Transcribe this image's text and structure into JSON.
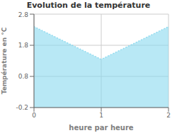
{
  "chart_data": {
    "type": "area",
    "title": "Evolution de la température",
    "xlabel": "heure par heure",
    "ylabel": "Température en °C",
    "x": [
      0,
      1,
      2
    ],
    "values": [
      2.4,
      1.35,
      2.4
    ],
    "xlim": [
      0,
      2
    ],
    "ylim": [
      -0.2,
      2.8
    ],
    "xticks": [
      0,
      1,
      2
    ],
    "yticks": [
      -0.2,
      0.8,
      1.8,
      2.8
    ],
    "color": "#88d8ee",
    "line_style": "dotted",
    "grid": true
  }
}
